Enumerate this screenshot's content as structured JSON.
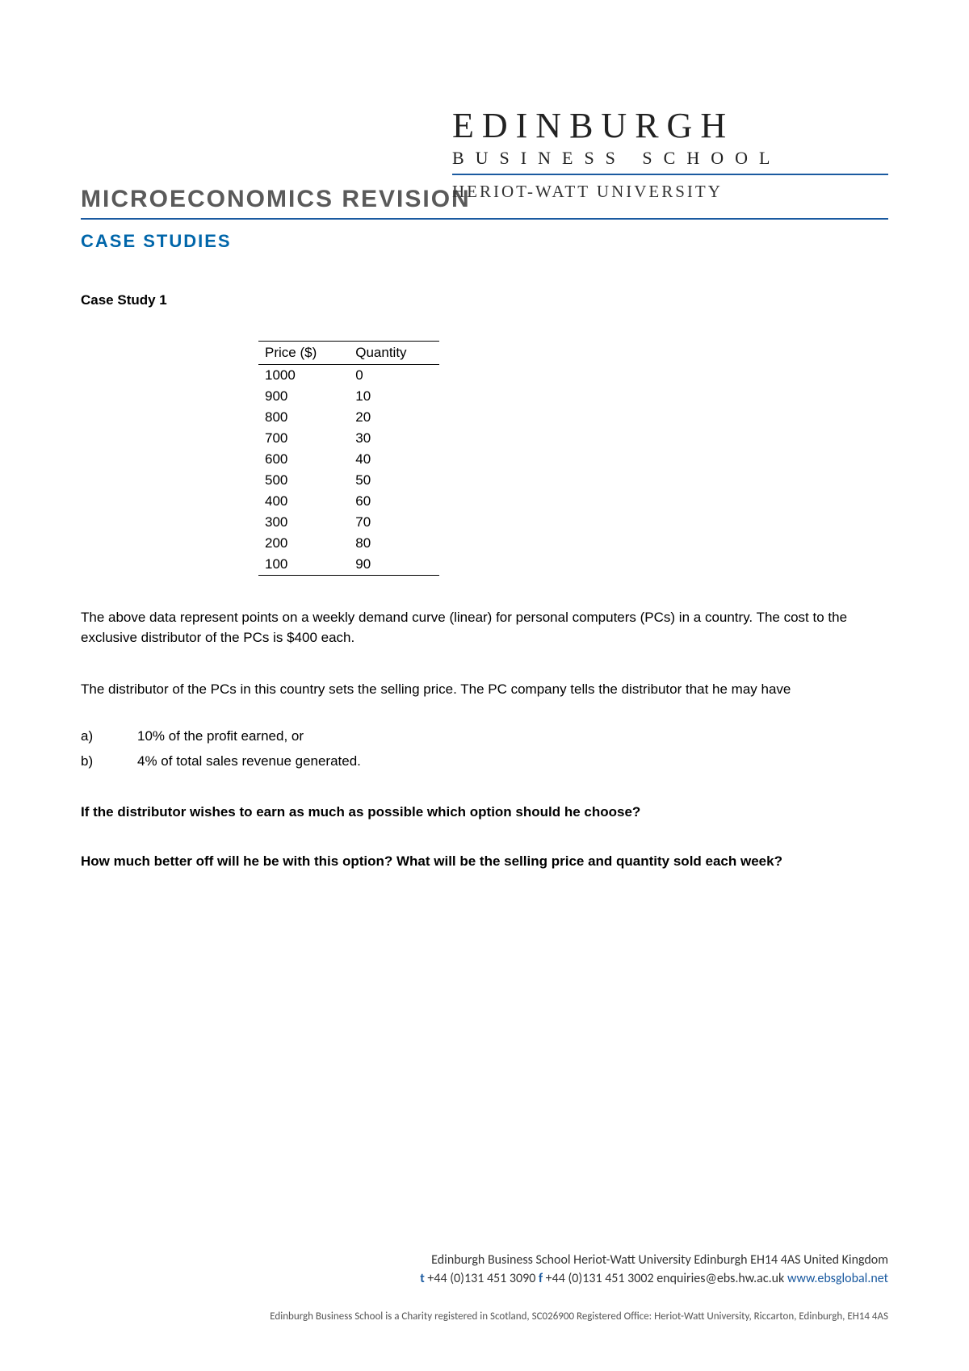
{
  "logo": {
    "line1": "EDINBURGH",
    "line2": "BUSINESS SCHOOL",
    "line3": "HERIOT-WATT UNIVERSITY"
  },
  "title": "MICROECONOMICS REVISION",
  "subtitle": "CASE STUDIES",
  "case_heading": "Case Study 1",
  "table": {
    "columns": [
      "Price ($)",
      "Quantity"
    ],
    "rows": [
      [
        "1000",
        "0"
      ],
      [
        "900",
        "10"
      ],
      [
        "800",
        "20"
      ],
      [
        "700",
        "30"
      ],
      [
        "600",
        "40"
      ],
      [
        "500",
        "50"
      ],
      [
        "400",
        "60"
      ],
      [
        "300",
        "70"
      ],
      [
        "200",
        "80"
      ],
      [
        "100",
        "90"
      ]
    ]
  },
  "para1": "The above data represent points on a weekly demand curve (linear) for personal computers (PCs) in a country.  The cost to the exclusive distributor of the PCs is $400 each.",
  "para2": "The distributor of the PCs in this country sets the selling price.  The PC company tells the distributor that he may have",
  "options": {
    "a_label": "a)",
    "a_text": "10% of the profit earned, or",
    "b_label": "b)",
    "b_text": "4% of total sales revenue generated."
  },
  "q1": "If the distributor wishes to earn as much as possible which option should he choose?",
  "q2": "How much better off will he be with this option?  What will be the selling price and quantity sold each week?",
  "footer": {
    "address": "Edinburgh Business School   Heriot-Watt University   Edinburgh EH14 4AS   United Kingdom",
    "t_label": "t",
    "tel": " +44 (0)131 451 3090   ",
    "f_label": "f",
    "fax": " +44 (0)131 451 3002   ",
    "email": "enquiries@ebs.hw.ac.uk   ",
    "web": "www.ebsglobal.net",
    "small": "Edinburgh Business School is a Charity registered in Scotland, SC026900  Registered Office: Heriot-Watt University, Riccarton, Edinburgh, EH14 4AS"
  },
  "colors": {
    "accent": "#1a5aa0",
    "title_gray": "#5a5a5a",
    "subtitle_blue": "#0066aa",
    "text": "#000000",
    "background": "#ffffff"
  }
}
